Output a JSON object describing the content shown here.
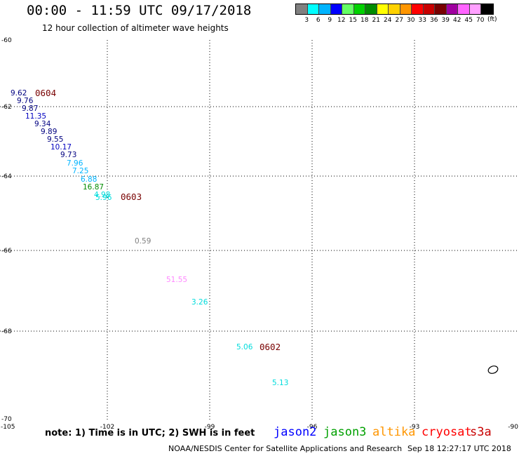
{
  "title": "00:00 - 11:59 UTC 09/17/2018",
  "subtitle": "12 hour collection of altimeter wave heights",
  "legend": {
    "unit": "(ft)",
    "colors": [
      "#808080",
      "#00ffff",
      "#00b4ff",
      "#0000ff",
      "#64ff64",
      "#00d200",
      "#008c00",
      "#ffff00",
      "#ffd200",
      "#ff9600",
      "#ff0000",
      "#c80000",
      "#780000",
      "#a000a0",
      "#ff64ff",
      "#ffa0ff",
      "#000000"
    ],
    "labels": [
      "3",
      "6",
      "9",
      "12",
      "15",
      "18",
      "21",
      "24",
      "27",
      "30",
      "33",
      "36",
      "39",
      "42",
      "45",
      "70"
    ]
  },
  "axes": {
    "lon_labels": [
      "-105",
      "-102",
      "-99",
      "-96",
      "-93",
      "-90"
    ],
    "lat_labels": [
      "-60",
      "-62",
      "-64",
      "-66",
      "-68",
      "-70"
    ]
  },
  "observations": [
    {
      "text": "9.62",
      "color": "#000080"
    },
    {
      "text": "9.76",
      "color": "#000080"
    },
    {
      "text": "9.87",
      "color": "#000080"
    },
    {
      "text": "11.35",
      "color": "#0000c0"
    },
    {
      "text": "9.34",
      "color": "#000080"
    },
    {
      "text": "9.89",
      "color": "#000080"
    },
    {
      "text": "9.55",
      "color": "#000080"
    },
    {
      "text": "10.17",
      "color": "#0000c0"
    },
    {
      "text": "9.73",
      "color": "#000080"
    },
    {
      "text": "7.96",
      "color": "#00b4ff"
    },
    {
      "text": "7.25",
      "color": "#00b4ff"
    },
    {
      "text": "6.88",
      "color": "#00b4ff"
    },
    {
      "text": "16.87",
      "color": "#008c00"
    },
    {
      "text": "4.98",
      "color": "#00dcdc"
    },
    {
      "text": "5.96",
      "color": "#00dcdc"
    },
    {
      "text": "0.59",
      "color": "#808080"
    },
    {
      "text": "51.55",
      "color": "#ff88ff"
    },
    {
      "text": "3.26",
      "color": "#00dcdc"
    },
    {
      "text": "5.06",
      "color": "#00dcdc"
    },
    {
      "text": "5.13",
      "color": "#00dcdc"
    }
  ],
  "time_markers": [
    {
      "text": "0604",
      "color": "#780000"
    },
    {
      "text": "0603",
      "color": "#780000"
    },
    {
      "text": "0602",
      "color": "#780000"
    }
  ],
  "note": "note: 1) Time is in UTC; 2) SWH is in feet",
  "satellites": [
    {
      "name": "jason2",
      "color": "#0000ff"
    },
    {
      "name": "jason3",
      "color": "#00a000"
    },
    {
      "name": "altika",
      "color": "#ff9600"
    },
    {
      "name": "cryosat",
      "color": "#ff0000"
    },
    {
      "name": "s3a",
      "color": "#c80000"
    }
  ],
  "footer_credit": "NOAA/NESDIS Center for Satellite Applications and Research",
  "footer_time": "Sep 18 12:27:17 UTC 2018"
}
